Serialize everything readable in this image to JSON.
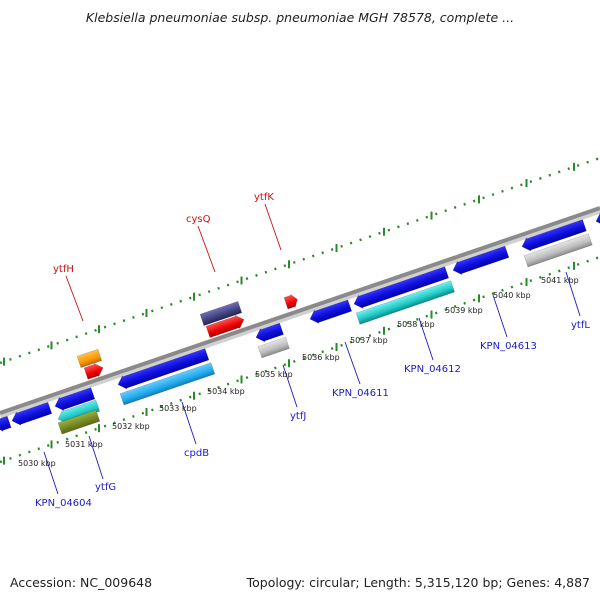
{
  "title": "Klebsiella pneumoniae subsp. pneumoniae MGH 78578, complete ...",
  "footer": {
    "accession": "Accession: NC_009648",
    "summary": "Topology: circular; Length: 5,315,120 bp; Genes: 4,887"
  },
  "colors": {
    "backbone": "#8a8a8a",
    "dots": "#2a8a2a",
    "forward_label": "#cc1111",
    "reverse_label": "#1a1acc",
    "leader_line": "#1a1acc"
  },
  "chart_data": {
    "type": "genome-map",
    "tick_labels": [
      "5030 kbp",
      "5031 kbp",
      "5032 kbp",
      "5033 kbp",
      "5034 kbp",
      "5035 kbp",
      "5036 kbp",
      "5037 kbp",
      "5038 kbp",
      "5039 kbp",
      "5040 kbp",
      "5041 kbp"
    ],
    "forward_labels": [
      "ytfH",
      "cysQ",
      "ytfK"
    ],
    "reverse_labels": [
      "KPN_04604",
      "ytfG",
      "cpdB",
      "ytfJ",
      "KPN_04611",
      "KPN_04612",
      "KPN_04613",
      "ytfL"
    ]
  }
}
